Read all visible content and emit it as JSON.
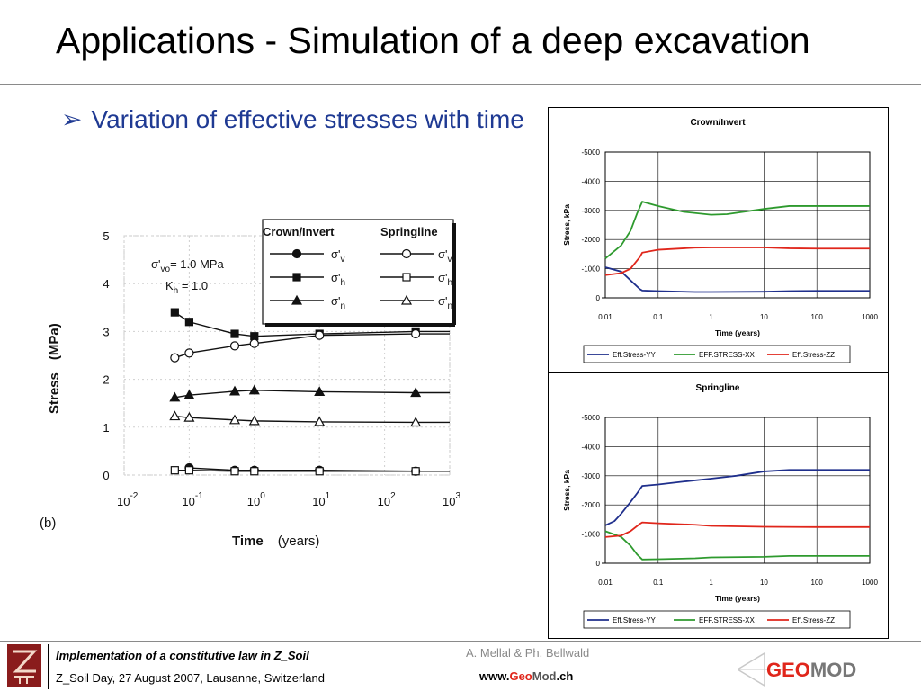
{
  "slide": {
    "title": "Applications - Simulation of a deep excavation",
    "bullet_marker": "➢",
    "bullet": "Variation of effective stresses with time"
  },
  "footer": {
    "line1": "Implementation of a constitutive law in Z_Soil",
    "line2": "Z_Soil Day, 27 August 2007, Lausanne, Switzerland",
    "authors": "A. Mellal & Ph. Bellwald",
    "website_prefix": "www.",
    "website_geo": "Geo",
    "website_mod": "Mod",
    "website_suffix": ".ch",
    "logo_icon": "zsoil-logo-icon",
    "geomod_logo_text_geo": "GE",
    "geomod_logo_text_mod": "MOD"
  },
  "colors": {
    "bullet": "#1f3a93",
    "yy": "#1f2f8c",
    "xx": "#2e9a2e",
    "zz": "#e0261b",
    "brand_red": "#e0261b",
    "logo_bg": "#8a1c1c"
  },
  "chart_data": [
    {
      "id": "scanned",
      "type": "line",
      "title": "",
      "xlabel": "Time",
      "xlabel_units": "(years)",
      "ylabel": "Stress",
      "ylabel_units": "(MPa)",
      "panel_label": "(b)",
      "x_scale": "log",
      "xlim": [
        0.01,
        1000
      ],
      "ylim": [
        0,
        5
      ],
      "y_ticks": [
        "0",
        "1",
        "2",
        "3",
        "4",
        "5"
      ],
      "x_ticks": [
        {
          "base": "10",
          "exp": "-2"
        },
        {
          "base": "10",
          "exp": "-1"
        },
        {
          "base": "10",
          "exp": "0"
        },
        {
          "base": "10",
          "exp": "1"
        },
        {
          "base": "10",
          "exp": "2"
        },
        {
          "base": "10",
          "exp": "3"
        }
      ],
      "annotation": {
        "line1_pre": "σ'",
        "line1_sub": "vo",
        "line1_post": "= 1.0 MPa",
        "line2_pre": "K",
        "line2_sub": "h",
        "line2_post": " = 1.0"
      },
      "legend": {
        "header_crown": "Crown/Invert",
        "header_spring": "Springline",
        "items": [
          {
            "sym": "σ'",
            "sub": "v"
          },
          {
            "sym": "σ'",
            "sub": "h"
          },
          {
            "sym": "σ'",
            "sub": "n"
          }
        ]
      },
      "series": [
        {
          "group": "Crown/Invert",
          "component": "v",
          "marker": "circle-filled",
          "x": [
            0.1,
            0.5,
            1,
            10,
            300
          ],
          "y": [
            0.15,
            0.1,
            0.1,
            0.1,
            0.08
          ]
        },
        {
          "group": "Crown/Invert",
          "component": "h",
          "marker": "square-filled",
          "x": [
            0.06,
            0.1,
            0.5,
            1,
            10,
            300
          ],
          "y": [
            3.4,
            3.2,
            2.95,
            2.9,
            2.95,
            3.0
          ]
        },
        {
          "group": "Crown/Invert",
          "component": "n",
          "marker": "triangle-filled",
          "x": [
            0.06,
            0.1,
            0.5,
            1,
            10,
            300
          ],
          "y": [
            1.62,
            1.67,
            1.75,
            1.77,
            1.74,
            1.72
          ]
        },
        {
          "group": "Springline",
          "component": "v",
          "marker": "circle-open",
          "x": [
            0.06,
            0.1,
            0.5,
            1,
            10,
            300
          ],
          "y": [
            2.45,
            2.55,
            2.7,
            2.75,
            2.92,
            2.95
          ]
        },
        {
          "group": "Springline",
          "component": "h",
          "marker": "square-open",
          "x": [
            0.06,
            0.1,
            0.5,
            1,
            10,
            300
          ],
          "y": [
            0.1,
            0.1,
            0.08,
            0.08,
            0.08,
            0.08
          ]
        },
        {
          "group": "Springline",
          "component": "n",
          "marker": "triangle-open",
          "x": [
            0.06,
            0.1,
            0.5,
            1,
            10,
            300
          ],
          "y": [
            1.23,
            1.2,
            1.15,
            1.13,
            1.11,
            1.1
          ]
        }
      ]
    },
    {
      "id": "crown",
      "type": "line",
      "title": "Crown/Invert",
      "xlabel": "Time (years)",
      "ylabel": "Stress, kPa",
      "x_scale": "log",
      "xlim": [
        0.01,
        1000
      ],
      "ylim": [
        -5000,
        0
      ],
      "y_inverted": true,
      "x_ticks": [
        "0.01",
        "0.1",
        "1",
        "10",
        "100",
        "1000"
      ],
      "y_ticks": [
        "-5000",
        "-4000",
        "-3000",
        "-2000",
        "-1000",
        "0"
      ],
      "legend_position": "bottom",
      "series": [
        {
          "name": "Eff.Stress-YY",
          "color_key": "yy",
          "x": [
            0.01,
            0.02,
            0.03,
            0.045,
            0.05,
            0.1,
            0.5,
            1,
            10,
            30,
            100,
            1000
          ],
          "y": [
            -1050,
            -900,
            -600,
            -300,
            -250,
            -230,
            -200,
            -200,
            -210,
            -230,
            -240,
            -240
          ]
        },
        {
          "name": "EFF.STRESS-XX",
          "color_key": "xx",
          "x": [
            0.01,
            0.02,
            0.03,
            0.04,
            0.05,
            0.1,
            0.3,
            1,
            2,
            10,
            30,
            100,
            1000
          ],
          "y": [
            -1350,
            -1800,
            -2300,
            -2900,
            -3300,
            -3150,
            -2950,
            -2850,
            -2870,
            -3050,
            -3150,
            -3150,
            -3150
          ]
        },
        {
          "name": "Eff.Stress-ZZ",
          "color_key": "zz",
          "x": [
            0.01,
            0.02,
            0.03,
            0.045,
            0.05,
            0.1,
            0.5,
            1,
            10,
            30,
            100,
            1000
          ],
          "y": [
            -780,
            -850,
            -1000,
            -1400,
            -1550,
            -1650,
            -1720,
            -1730,
            -1730,
            -1700,
            -1690,
            -1690
          ]
        }
      ]
    },
    {
      "id": "spring",
      "type": "line",
      "title": "Springline",
      "xlabel": "Time (years)",
      "ylabel": "Stress, kPa",
      "x_scale": "log",
      "xlim": [
        0.01,
        1000
      ],
      "ylim": [
        -5000,
        0
      ],
      "y_inverted": true,
      "x_ticks": [
        "0.01",
        "0.1",
        "1",
        "10",
        "100",
        "1000"
      ],
      "y_ticks": [
        "-5000",
        "-4000",
        "-3000",
        "-2000",
        "-1000",
        "0"
      ],
      "legend_position": "bottom",
      "series": [
        {
          "name": "Eff.Stress-YY",
          "color_key": "yy",
          "x": [
            0.01,
            0.015,
            0.02,
            0.03,
            0.04,
            0.05,
            0.1,
            0.3,
            1,
            3,
            10,
            30,
            100,
            1000
          ],
          "y": [
            -1300,
            -1450,
            -1700,
            -2100,
            -2400,
            -2650,
            -2700,
            -2800,
            -2900,
            -3000,
            -3150,
            -3200,
            -3200,
            -3200
          ]
        },
        {
          "name": "EFF.STRESS-XX",
          "color_key": "xx",
          "x": [
            0.01,
            0.02,
            0.03,
            0.04,
            0.05,
            0.1,
            0.5,
            1,
            10,
            30,
            100,
            1000
          ],
          "y": [
            -1100,
            -900,
            -600,
            -300,
            -130,
            -140,
            -170,
            -200,
            -220,
            -250,
            -250,
            -250
          ]
        },
        {
          "name": "Eff.Stress-ZZ",
          "color_key": "zz",
          "x": [
            0.01,
            0.02,
            0.03,
            0.045,
            0.05,
            0.1,
            0.5,
            1,
            10,
            100,
            1000
          ],
          "y": [
            -900,
            -950,
            -1100,
            -1350,
            -1400,
            -1370,
            -1320,
            -1280,
            -1250,
            -1240,
            -1240
          ]
        }
      ]
    }
  ]
}
